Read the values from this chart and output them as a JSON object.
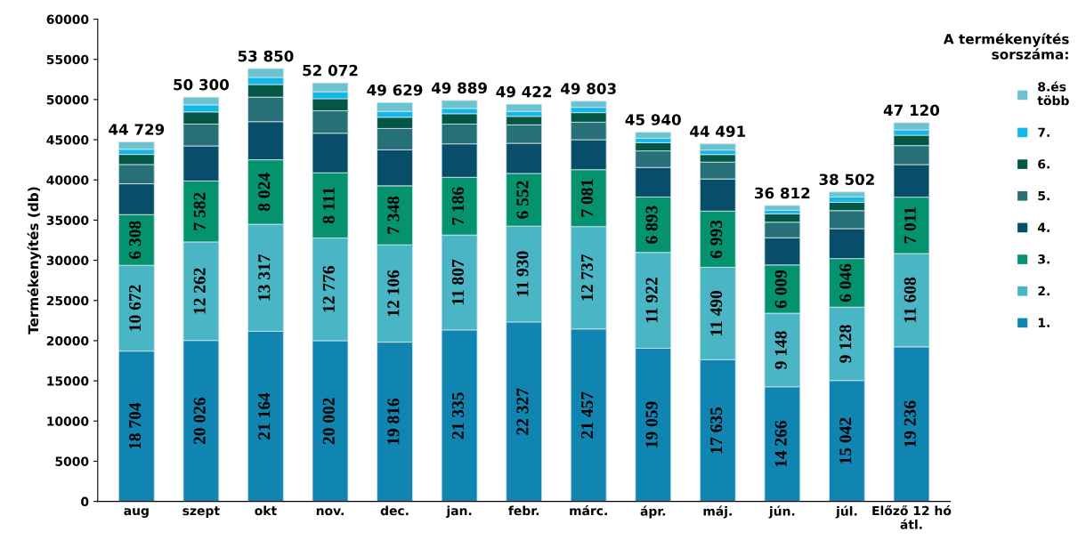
{
  "chart_data": {
    "type": "bar",
    "stacked": true,
    "ylabel": "Termékenyítés (db)",
    "legend_title": "A termékenyítés\nsorszáma:",
    "legend": "right",
    "categories": [
      "aug",
      "szept",
      "okt",
      "nov.",
      "dec.",
      "jan.",
      "febr.",
      "márc.",
      "ápr.",
      "máj.",
      "jún.",
      "júl.",
      "Előző 12 hó\nátl."
    ],
    "ylim": [
      0,
      60000
    ],
    "yticks": [
      0,
      5000,
      10000,
      15000,
      20000,
      25000,
      30000,
      35000,
      40000,
      45000,
      50000,
      55000,
      60000
    ],
    "grid": false,
    "series": [
      {
        "name": "1.",
        "color": "#1185b1",
        "values": [
          18704,
          20026,
          21164,
          20002,
          19816,
          21335,
          22327,
          21457,
          19059,
          17635,
          14266,
          15042,
          19236
        ],
        "value_labels": [
          "18 704",
          "20 026",
          "21 164",
          "20 002",
          "19 816",
          "21 335",
          "22 327",
          "21 457",
          "19 059",
          "17 635",
          "14 266",
          "15 042",
          "19 236"
        ]
      },
      {
        "name": "2.",
        "color": "#4ab5c4",
        "values": [
          10672,
          12262,
          13317,
          12776,
          12106,
          11807,
          11930,
          12737,
          11922,
          11490,
          9148,
          9128,
          11608
        ],
        "value_labels": [
          "10 672",
          "12 262",
          "13 317",
          "12 776",
          "12 106",
          "11 807",
          "11 930",
          "12 737",
          "11 922",
          "11 490",
          "9 148",
          "9 128",
          "11 608"
        ]
      },
      {
        "name": "3.",
        "color": "#05936f",
        "values": [
          6308,
          7582,
          8024,
          8111,
          7348,
          7186,
          6552,
          7081,
          6893,
          6993,
          6009,
          6046,
          7011
        ],
        "value_labels": [
          "6 308",
          "7 582",
          "8 024",
          "8 111",
          "7 348",
          "7 186",
          "6 552",
          "7 081",
          "6 893",
          "6 993",
          "6 009",
          "6 046",
          "7 011"
        ]
      },
      {
        "name": "4.",
        "color": "#084d6a",
        "values": [
          3836,
          4360,
          4745,
          4921,
          4480,
          4162,
          3751,
          3725,
          3676,
          4002,
          3377,
          3724,
          4055
        ]
      },
      {
        "name": "5.",
        "color": "#287078",
        "values": [
          2400,
          2720,
          3050,
          2790,
          2650,
          2460,
          2290,
          2180,
          2060,
          2100,
          1940,
          2240,
          2360
        ]
      },
      {
        "name": "6.",
        "color": "#045744",
        "values": [
          1250,
          1510,
          1570,
          1510,
          1400,
          1290,
          1060,
          1190,
          1030,
          940,
          1040,
          1030,
          1290
        ]
      },
      {
        "name": "7.",
        "color": "#12b8ec",
        "values": [
          650,
          880,
          890,
          850,
          730,
          660,
          620,
          660,
          550,
          560,
          440,
          660,
          660
        ]
      },
      {
        "name": "8.és\ntöbb",
        "color": "#6cc3d0",
        "values": [
          909,
          960,
          1090,
          1112,
          1099,
          989,
          892,
          773,
          750,
          771,
          592,
          632,
          900
        ]
      }
    ],
    "totals": [
      "44 729",
      "50 300",
      "53 850",
      "52 072",
      "49 629",
      "49 889",
      "49 422",
      "49 803",
      "45 940",
      "44 491",
      "36 812",
      "38 502",
      "47 120"
    ]
  }
}
